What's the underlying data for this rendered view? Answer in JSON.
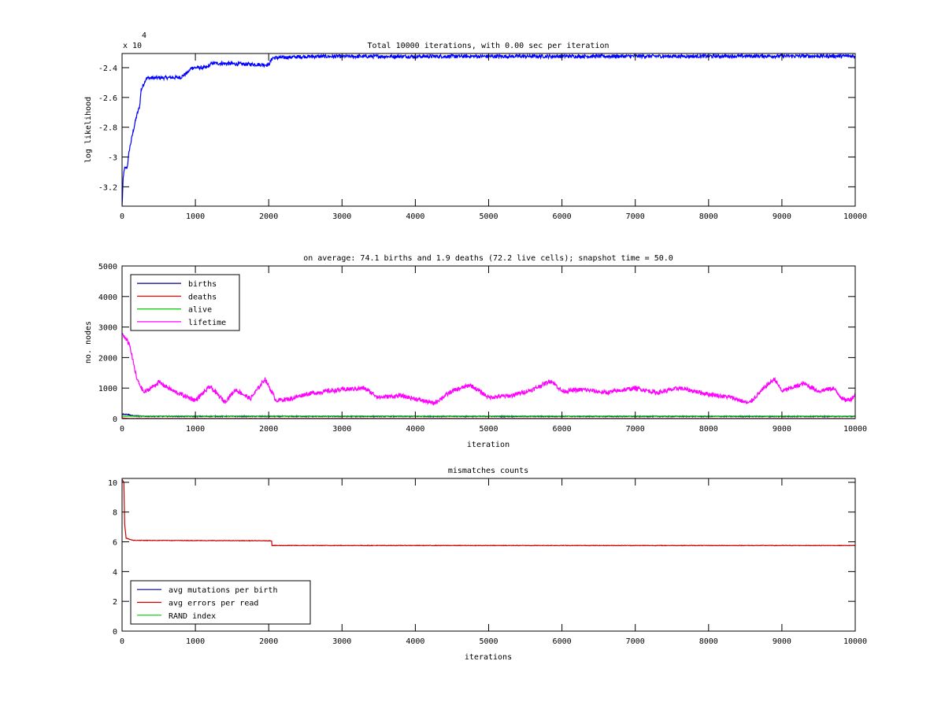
{
  "chart_data": [
    {
      "type": "line",
      "title": "Total 10000 iterations, with 0.00 sec per iteration",
      "xlabel": "",
      "ylabel": "log likelihood",
      "y_multiplier_label": "x 10",
      "y_multiplier_exponent": "4",
      "xlim": [
        0,
        10000
      ],
      "ylim": [
        -3.33,
        -2.305
      ],
      "xticks": [
        0,
        1000,
        2000,
        3000,
        4000,
        5000,
        6000,
        7000,
        8000,
        9000,
        10000
      ],
      "yticks": [
        -3.2,
        -3,
        -2.8,
        -2.6,
        -2.4
      ],
      "ytick_labels": [
        "-3.2",
        "-3",
        "-2.8",
        "-2.6",
        "-2.4"
      ],
      "series": [
        {
          "name": "log likelihood",
          "color": "#0000ff",
          "noise": 0.012,
          "points": [
            [
              0,
              -3.33
            ],
            [
              15,
              -3.15
            ],
            [
              30,
              -3.08
            ],
            [
              70,
              -3.07
            ],
            [
              100,
              -2.95
            ],
            [
              150,
              -2.83
            ],
            [
              200,
              -2.72
            ],
            [
              240,
              -2.66
            ],
            [
              260,
              -2.55
            ],
            [
              330,
              -2.47
            ],
            [
              800,
              -2.465
            ],
            [
              900,
              -2.43
            ],
            [
              950,
              -2.4
            ],
            [
              1150,
              -2.4
            ],
            [
              1230,
              -2.37
            ],
            [
              1950,
              -2.38
            ],
            [
              2000,
              -2.38
            ],
            [
              2050,
              -2.335
            ],
            [
              2500,
              -2.325
            ],
            [
              10000,
              -2.322
            ]
          ]
        }
      ]
    },
    {
      "type": "line",
      "title": "on average: 74.1 births and 1.9 deaths (72.2 live cells); snapshot time = 50.0",
      "xlabel": "iteration",
      "ylabel": "no. nodes",
      "xlim": [
        0,
        10000
      ],
      "ylim": [
        0,
        5000
      ],
      "xticks": [
        0,
        1000,
        2000,
        3000,
        4000,
        5000,
        6000,
        7000,
        8000,
        9000,
        10000
      ],
      "yticks": [
        0,
        1000,
        2000,
        3000,
        4000,
        5000
      ],
      "legend": "top-left",
      "series": [
        {
          "name": "births",
          "color": "#00008b",
          "noise": 15,
          "points": [
            [
              0,
              150
            ],
            [
              80,
              140
            ],
            [
              150,
              90
            ],
            [
              300,
              75
            ],
            [
              10000,
              72
            ]
          ]
        },
        {
          "name": "deaths",
          "color": "#ff0000",
          "noise": 3,
          "points": [
            [
              0,
              20
            ],
            [
              100,
              5
            ],
            [
              10000,
              3
            ]
          ]
        },
        {
          "name": "alive",
          "color": "#00cc00",
          "noise": 3,
          "points": [
            [
              0,
              80
            ],
            [
              10000,
              78
            ]
          ]
        },
        {
          "name": "lifetime",
          "color": "#ff00ff",
          "noise": 70,
          "points": [
            [
              0,
              2800
            ],
            [
              50,
              2600
            ],
            [
              100,
              2450
            ],
            [
              200,
              1300
            ],
            [
              300,
              850
            ],
            [
              450,
              1100
            ],
            [
              500,
              1200
            ],
            [
              700,
              900
            ],
            [
              900,
              700
            ],
            [
              1000,
              600
            ],
            [
              1200,
              1050
            ],
            [
              1400,
              550
            ],
            [
              1550,
              950
            ],
            [
              1750,
              650
            ],
            [
              1950,
              1300
            ],
            [
              2100,
              600
            ],
            [
              2300,
              650
            ],
            [
              2500,
              800
            ],
            [
              2800,
              900
            ],
            [
              3000,
              950
            ],
            [
              3300,
              1000
            ],
            [
              3500,
              700
            ],
            [
              3800,
              750
            ],
            [
              4000,
              650
            ],
            [
              4250,
              500
            ],
            [
              4500,
              900
            ],
            [
              4750,
              1100
            ],
            [
              5000,
              700
            ],
            [
              5300,
              750
            ],
            [
              5600,
              950
            ],
            [
              5850,
              1250
            ],
            [
              6000,
              900
            ],
            [
              6300,
              950
            ],
            [
              6600,
              850
            ],
            [
              7000,
              1000
            ],
            [
              7300,
              850
            ],
            [
              7600,
              1000
            ],
            [
              8000,
              800
            ],
            [
              8300,
              700
            ],
            [
              8550,
              500
            ],
            [
              8800,
              1100
            ],
            [
              8900,
              1300
            ],
            [
              9000,
              900
            ],
            [
              9300,
              1150
            ],
            [
              9500,
              900
            ],
            [
              9700,
              1000
            ],
            [
              9850,
              600
            ],
            [
              9950,
              650
            ],
            [
              10000,
              800
            ]
          ]
        }
      ]
    },
    {
      "type": "line",
      "title": "mismatches counts",
      "xlabel": "iterations",
      "ylabel": "",
      "xlim": [
        0,
        10000
      ],
      "ylim": [
        0,
        10.26
      ],
      "xticks": [
        0,
        1000,
        2000,
        3000,
        4000,
        5000,
        6000,
        7000,
        8000,
        9000,
        10000
      ],
      "yticks": [
        0,
        2,
        4,
        6,
        8,
        10
      ],
      "legend": "bottom-left",
      "series": [
        {
          "name": "avg mutations per birth",
          "color": "#00008b",
          "noise": 0,
          "points": []
        },
        {
          "name": "avg errors per read",
          "color": "#cc0000",
          "noise": 0.015,
          "points": [
            [
              0,
              10.2
            ],
            [
              25,
              10.0
            ],
            [
              35,
              7.2
            ],
            [
              55,
              6.25
            ],
            [
              150,
              6.1
            ],
            [
              2040,
              6.07
            ],
            [
              2045,
              5.75
            ],
            [
              10000,
              5.75
            ]
          ]
        },
        {
          "name": "RAND index",
          "color": "#00cc00",
          "noise": 0,
          "points": []
        }
      ]
    }
  ]
}
